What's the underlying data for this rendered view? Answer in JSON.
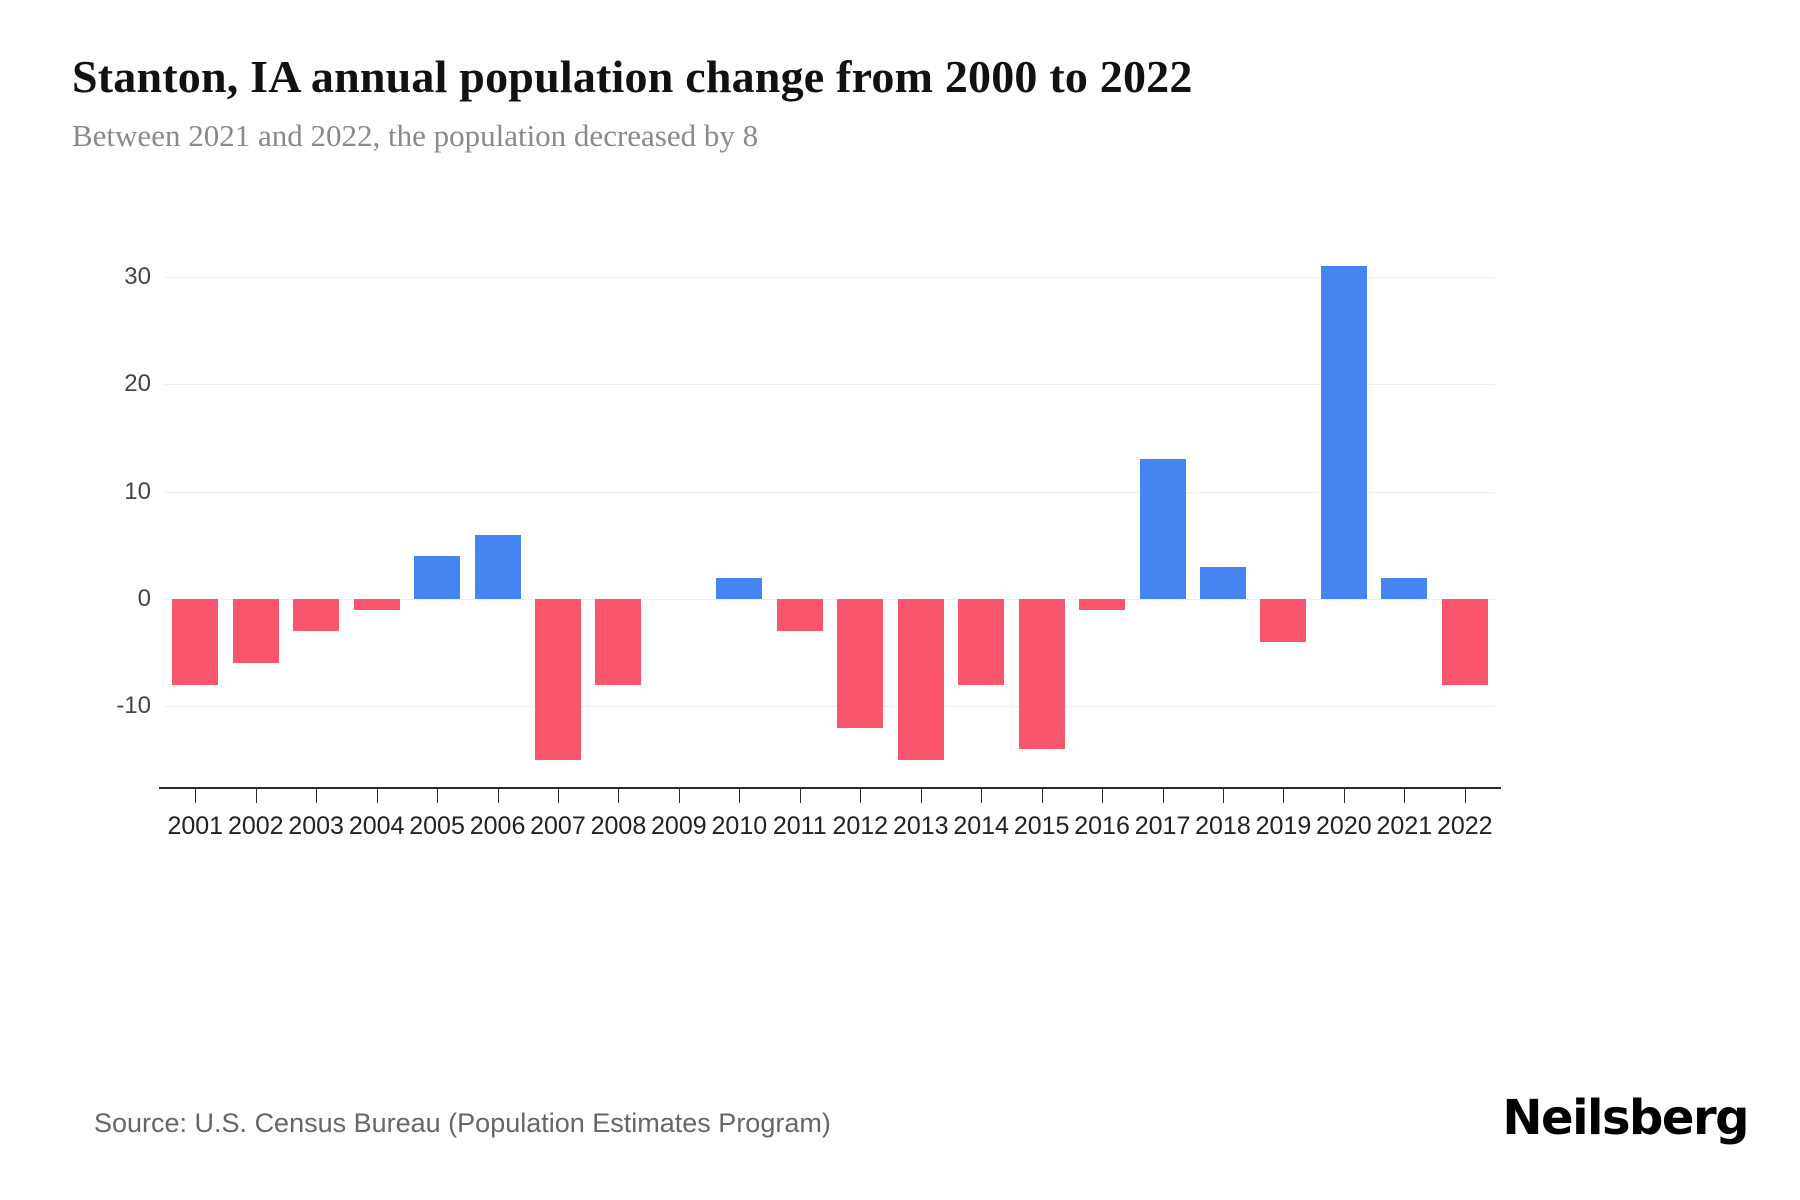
{
  "header": {
    "title": "Stanton, IA annual population change from 2000 to 2022",
    "subtitle": "Between 2021 and 2022, the population decreased by 8"
  },
  "chart_data": {
    "type": "bar",
    "title": "Stanton, IA annual population change from 2000 to 2022",
    "categories": [
      "2001",
      "2002",
      "2003",
      "2004",
      "2005",
      "2006",
      "2007",
      "2008",
      "2009",
      "2010",
      "2011",
      "2012",
      "2013",
      "2014",
      "2015",
      "2016",
      "2017",
      "2018",
      "2019",
      "2020",
      "2021",
      "2022"
    ],
    "values": [
      -8,
      -6,
      -3,
      -1,
      4,
      6,
      -15,
      -8,
      0,
      2,
      -3,
      -12,
      -15,
      -8,
      -14,
      -1,
      13,
      3,
      -4,
      31,
      2,
      -8
    ],
    "xlabel": "",
    "ylabel": "",
    "ylim": [
      -17.5,
      32.5
    ],
    "yticks": [
      30,
      20,
      10,
      0,
      -10
    ],
    "grid": true,
    "legend_position": "none",
    "positive_color": "#4485f3",
    "negative_color": "#f9566e"
  },
  "footer": {
    "source": "Source: U.S. Census Bureau (Population Estimates Program)",
    "brand": "Neilsberg"
  }
}
